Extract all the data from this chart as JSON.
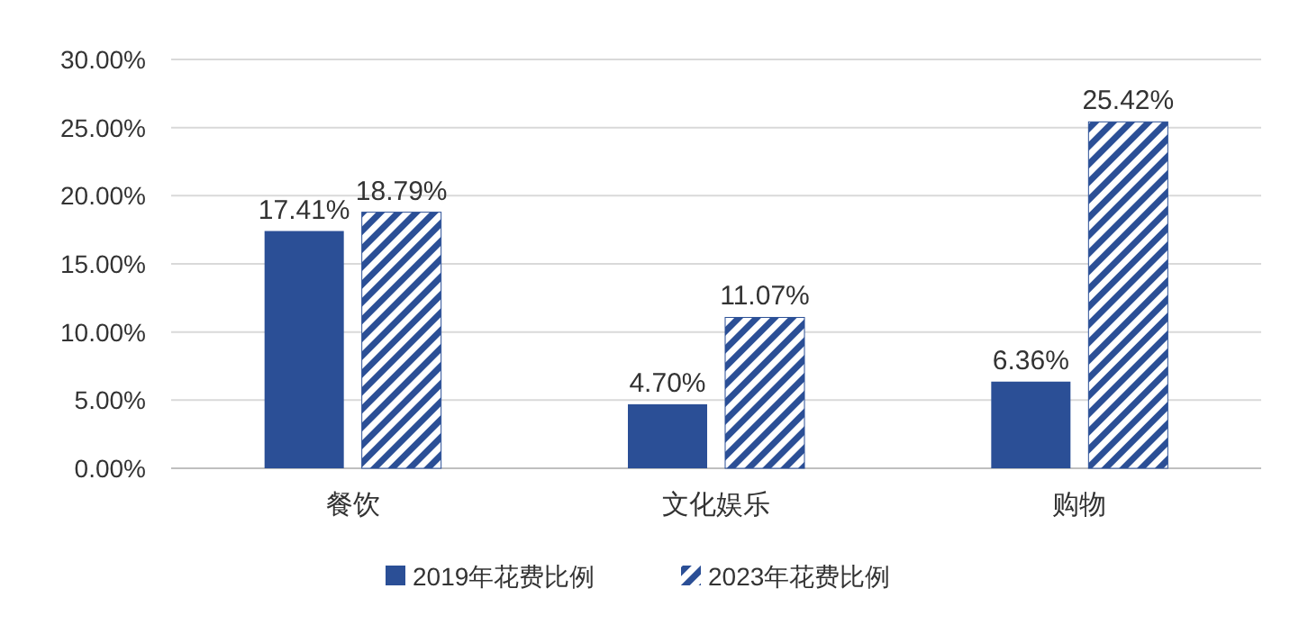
{
  "chart_data": {
    "type": "bar",
    "categories": [
      "餐饮",
      "文化娱乐",
      "购物"
    ],
    "series": [
      {
        "name": "2019年花费比例",
        "color": "#2b4f96",
        "values": [
          17.41,
          4.7,
          6.36
        ],
        "value_labels": [
          "17.41%",
          "4.70%",
          "6.36%"
        ]
      },
      {
        "name": "2023年花费比例",
        "color": "#2b4f96",
        "values": [
          18.79,
          11.07,
          25.42
        ],
        "value_labels": [
          "18.79%",
          "11.07%",
          "25.42%"
        ]
      }
    ],
    "ylim": [
      0,
      30
    ],
    "yticks": [
      {
        "value": 0,
        "label": "0.00%"
      },
      {
        "value": 5,
        "label": "5.00%"
      },
      {
        "value": 10,
        "label": "10.00%"
      },
      {
        "value": 15,
        "label": "15.00%"
      },
      {
        "value": 20,
        "label": "20.00%"
      },
      {
        "value": 25,
        "label": "25.00%"
      },
      {
        "value": 30,
        "label": "30.00%"
      }
    ],
    "grid": "y",
    "legend": "bottom"
  }
}
